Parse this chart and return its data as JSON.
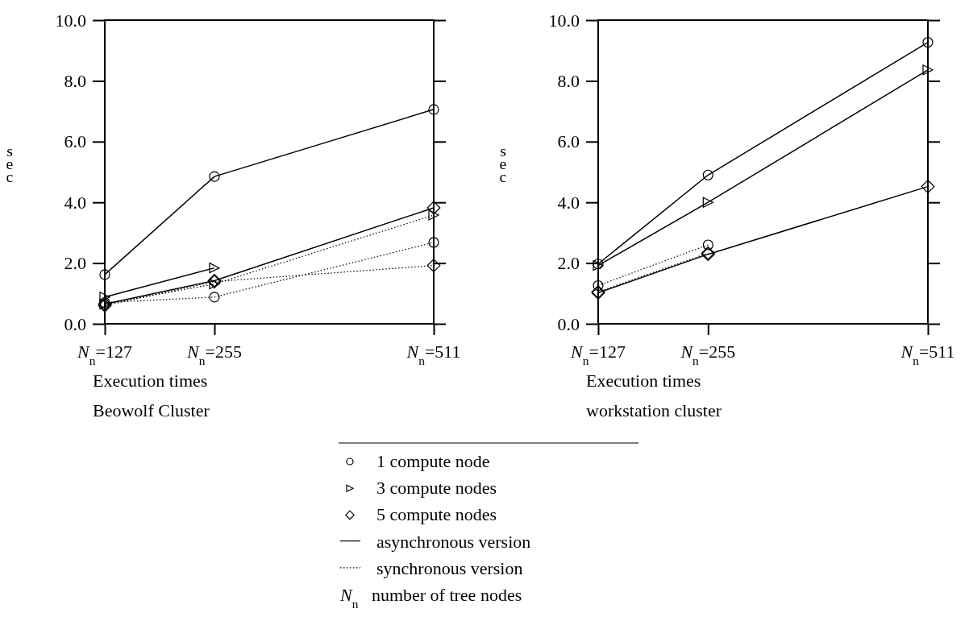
{
  "chart_data": [
    {
      "type": "line",
      "xlabel": "Execution times",
      "subtitle": "Beowolf Cluster",
      "ylabel": "sec",
      "x": [
        127,
        255,
        511
      ],
      "xlim": [
        127,
        511
      ],
      "xticks": [
        {
          "value": 127,
          "label": "N$_{n}$=127"
        },
        {
          "value": 255,
          "label": "N$_{n}$=255"
        },
        {
          "value": 511,
          "label": "N$_{n}$=511"
        }
      ],
      "ylim": [
        0,
        10
      ],
      "yticks": [
        {
          "value": 0,
          "label": "0.0"
        },
        {
          "value": 2,
          "label": "2.0"
        },
        {
          "value": 4,
          "label": "4.0"
        },
        {
          "value": 6,
          "label": "6.0"
        },
        {
          "value": 8,
          "label": "8.0"
        },
        {
          "value": 10,
          "label": "10.0"
        }
      ],
      "grid": false,
      "series": [
        {
          "color": "#000000",
          "marker": "circle",
          "line_style": "solid",
          "values": [
            1.62,
            4.85,
            7.06
          ]
        },
        {
          "color": "#000000",
          "marker": "triangle",
          "line_style": "solid",
          "values": [
            0.88,
            1.84,
            null
          ]
        },
        {
          "color": "#000000",
          "marker": "diamond",
          "line_style": "solid",
          "values": [
            0.65,
            1.42,
            3.82
          ]
        },
        {
          "color": "#000000",
          "marker": "circle",
          "line_style": "dotted",
          "values": [
            0.7,
            0.88,
            2.68
          ]
        },
        {
          "color": "#000000",
          "marker": "triangle",
          "line_style": "dotted",
          "values": [
            0.65,
            1.31,
            3.58
          ]
        },
        {
          "color": "#000000",
          "marker": "diamond",
          "line_style": "dotted",
          "values": [
            0.6,
            1.39,
            1.92
          ]
        }
      ]
    },
    {
      "type": "line",
      "xlabel": "Execution times",
      "subtitle": "workstation cluster",
      "ylabel": "sec",
      "x": [
        127,
        255,
        511
      ],
      "xlim": [
        127,
        511
      ],
      "xticks": [
        {
          "value": 127,
          "label": "N$_{n}$=127"
        },
        {
          "value": 255,
          "label": "N$_{n}$=255"
        },
        {
          "value": 511,
          "label": "N$_{n}$=511"
        }
      ],
      "ylim": [
        0,
        10
      ],
      "yticks": [
        {
          "value": 0,
          "label": "0.0"
        },
        {
          "value": 2,
          "label": "2.0"
        },
        {
          "value": 4,
          "label": "4.0"
        },
        {
          "value": 6,
          "label": "6.0"
        },
        {
          "value": 8,
          "label": "8.0"
        },
        {
          "value": 10,
          "label": "10.0"
        }
      ],
      "grid": false,
      "series": [
        {
          "color": "#000000",
          "marker": "circle",
          "line_style": "solid",
          "values": [
            1.97,
            4.9,
            9.27
          ]
        },
        {
          "color": "#000000",
          "marker": "triangle",
          "line_style": "solid",
          "values": [
            1.92,
            4.0,
            8.36
          ]
        },
        {
          "color": "#000000",
          "marker": "diamond",
          "line_style": "solid",
          "values": [
            1.02,
            2.29,
            4.52
          ]
        },
        {
          "color": "#000000",
          "marker": "circle",
          "line_style": "dotted",
          "values": [
            1.26,
            2.6,
            null
          ]
        },
        {
          "color": "#000000",
          "marker": "diamond",
          "line_style": "dotted",
          "values": [
            1.05,
            2.33,
            null
          ]
        }
      ]
    },
    {
      "type": "other",
      "annotations": [
        "1 compute node",
        "3 compute nodes",
        "5 compute nodes",
        "asynchronous version",
        "synchronous version",
        "N$_{n}$   number of tree nodes"
      ]
    }
  ]
}
